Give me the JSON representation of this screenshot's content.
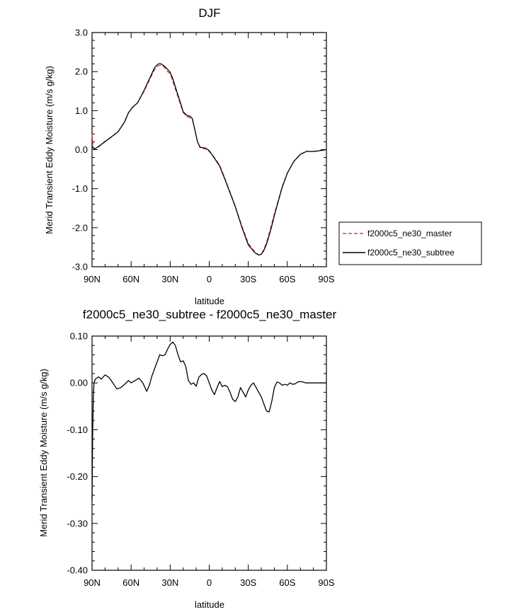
{
  "chart_data": [
    {
      "type": "line",
      "title": "DJF",
      "xlabel": "latitude",
      "ylabel": "Merid Transient Eddy Moisture (m/s g/kg)",
      "xlim": [
        90,
        -90
      ],
      "ylim": [
        -3.0,
        3.0
      ],
      "x_ticks": [
        90,
        60,
        30,
        0,
        -30,
        -60,
        -90
      ],
      "x_tick_labels": [
        "90N",
        "60N",
        "30N",
        "0",
        "30S",
        "60S",
        "90S"
      ],
      "y_ticks": [
        3.0,
        2.0,
        1.0,
        0.0,
        -1.0,
        -2.0,
        -3.0
      ],
      "y_tick_labels": [
        "3.0",
        "2.0",
        "1.0",
        "0.0",
        "-1.0",
        "-2.0",
        "-3.0"
      ],
      "legend_position": "right",
      "series": [
        {
          "name": "f2000c5_ne30_master",
          "color": "#e8383d",
          "dash": "dashed",
          "x": [
            90,
            89,
            88,
            85,
            80,
            75,
            70,
            65,
            62,
            59,
            55,
            50,
            45,
            42,
            39,
            37,
            35,
            32,
            30,
            28,
            25,
            22,
            20,
            17,
            15,
            13,
            11,
            9,
            7,
            5,
            3,
            1,
            0,
            -2,
            -5,
            -8,
            -11,
            -15,
            -20,
            -25,
            -30,
            -35,
            -38,
            -40,
            -42,
            -44,
            -46,
            -48,
            -50,
            -53,
            -56,
            -60,
            -65,
            -70,
            -75,
            -78,
            -82,
            -86,
            -90
          ],
          "y": [
            0.4,
            0.05,
            0.02,
            0.07,
            0.2,
            0.33,
            0.45,
            0.72,
            0.95,
            1.08,
            1.2,
            1.5,
            1.85,
            2.05,
            2.15,
            2.17,
            2.13,
            2.0,
            1.95,
            1.75,
            1.45,
            1.15,
            0.95,
            0.85,
            0.82,
            0.78,
            0.5,
            0.2,
            0.05,
            0.03,
            0.02,
            -0.02,
            -0.05,
            -0.12,
            -0.25,
            -0.4,
            -0.65,
            -1.0,
            -1.45,
            -1.95,
            -2.4,
            -2.62,
            -2.7,
            -2.68,
            -2.55,
            -2.38,
            -2.15,
            -1.9,
            -1.65,
            -1.3,
            -0.95,
            -0.6,
            -0.3,
            -0.12,
            -0.04,
            -0.05,
            -0.04,
            -0.02,
            0.0
          ]
        },
        {
          "name": "f2000c5_ne30_subtree",
          "color": "#000000",
          "dash": "solid",
          "x": [
            90,
            89,
            88,
            85,
            80,
            75,
            70,
            65,
            62,
            59,
            55,
            50,
            45,
            42,
            39,
            37,
            35,
            32,
            30,
            28,
            25,
            22,
            20,
            17,
            15,
            13,
            11,
            9,
            7,
            5,
            3,
            1,
            0,
            -2,
            -5,
            -8,
            -11,
            -15,
            -20,
            -25,
            -30,
            -35,
            -38,
            -40,
            -42,
            -44,
            -46,
            -48,
            -50,
            -53,
            -56,
            -60,
            -65,
            -70,
            -75,
            -78,
            -82,
            -86,
            -90
          ],
          "y": [
            0.1,
            0.04,
            0.02,
            0.08,
            0.21,
            0.33,
            0.46,
            0.71,
            0.95,
            1.08,
            1.2,
            1.52,
            1.88,
            2.1,
            2.2,
            2.2,
            2.15,
            2.06,
            1.98,
            1.82,
            1.5,
            1.19,
            0.97,
            0.87,
            0.86,
            0.8,
            0.5,
            0.2,
            0.06,
            0.05,
            0.04,
            0.0,
            -0.03,
            -0.12,
            -0.27,
            -0.42,
            -0.67,
            -1.02,
            -1.46,
            -1.98,
            -2.44,
            -2.64,
            -2.7,
            -2.68,
            -2.58,
            -2.42,
            -2.2,
            -1.96,
            -1.69,
            -1.33,
            -0.97,
            -0.6,
            -0.3,
            -0.12,
            -0.04,
            -0.05,
            -0.04,
            -0.02,
            0.0
          ]
        }
      ]
    },
    {
      "type": "line",
      "title": "f2000c5_ne30_subtree - f2000c5_ne30_master",
      "xlabel": "latitude",
      "ylabel": "Merid Transient Eddy Moisture (m/s g/kg)",
      "xlim": [
        90,
        -90
      ],
      "ylim": [
        -0.4,
        0.1
      ],
      "x_ticks": [
        90,
        60,
        30,
        0,
        -30,
        -60,
        -90
      ],
      "x_tick_labels": [
        "90N",
        "60N",
        "30N",
        "0",
        "30S",
        "60S",
        "90S"
      ],
      "y_ticks": [
        0.1,
        0.0,
        -0.1,
        -0.2,
        -0.3,
        -0.4
      ],
      "y_tick_labels": [
        "0.10",
        "0.00",
        "-0.10",
        "-0.20",
        "-0.30",
        "-0.40"
      ],
      "series": [
        {
          "color": "#000000",
          "dash": "solid",
          "x": [
            90,
            89.5,
            89,
            88.5,
            87.5,
            85,
            83,
            80,
            77,
            74,
            71,
            68,
            65,
            62,
            60,
            57,
            54,
            51,
            48,
            46,
            44,
            42,
            40,
            38,
            36,
            34,
            32,
            30,
            28,
            26,
            24,
            22,
            20,
            18,
            16,
            14,
            12,
            10,
            8,
            6,
            4,
            2,
            0,
            -2,
            -4,
            -6,
            -8,
            -10,
            -12,
            -14,
            -16,
            -18,
            -20,
            -22,
            -24,
            -26,
            -28,
            -30,
            -32,
            -34,
            -36,
            -38,
            -40,
            -42,
            -44,
            -46,
            -48,
            -50,
            -52,
            -54,
            -56,
            -58,
            -60,
            -62,
            -64,
            -66,
            -68,
            -70,
            -72,
            -74,
            -76,
            -78,
            -80,
            -82,
            -84,
            -86,
            -88,
            -90
          ],
          "y": [
            -0.25,
            -0.1,
            -0.03,
            0.0,
            0.008,
            0.013,
            0.008,
            0.017,
            0.012,
            0.0,
            -0.013,
            -0.01,
            -0.003,
            0.005,
            0.0,
            0.005,
            0.01,
            0.0,
            -0.018,
            -0.005,
            0.015,
            0.03,
            0.045,
            0.06,
            0.058,
            0.06,
            0.072,
            0.082,
            0.087,
            0.08,
            0.06,
            0.045,
            0.047,
            0.035,
            0.005,
            -0.003,
            0.0,
            -0.007,
            0.012,
            0.018,
            0.02,
            0.015,
            0.0,
            -0.015,
            -0.025,
            -0.01,
            0.003,
            -0.008,
            -0.005,
            -0.008,
            -0.02,
            -0.035,
            -0.04,
            -0.03,
            -0.01,
            -0.02,
            -0.03,
            -0.015,
            -0.005,
            0.0,
            -0.01,
            -0.02,
            -0.03,
            -0.045,
            -0.06,
            -0.062,
            -0.04,
            -0.01,
            0.002,
            0.0,
            -0.005,
            -0.003,
            -0.005,
            0.0,
            -0.003,
            -0.002,
            0.002,
            0.003,
            0.002,
            0.0,
            0.0,
            0.0,
            0.0,
            0.0,
            0.0,
            0.0,
            0.0,
            0.0
          ]
        }
      ]
    }
  ],
  "legend": {
    "items": [
      {
        "label": "f2000c5_ne30_master",
        "color": "#e8383d",
        "dash": "dashed"
      },
      {
        "label": "f2000c5_ne30_subtree",
        "color": "#000000",
        "dash": "solid"
      }
    ]
  }
}
